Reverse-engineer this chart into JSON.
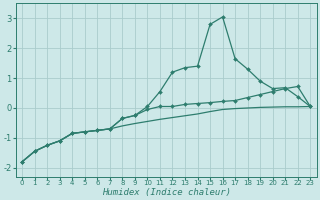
{
  "xlabel": "Humidex (Indice chaleur)",
  "background_color": "#cde8e8",
  "grid_color": "#aacccc",
  "line_color": "#2e7d6e",
  "xlim": [
    -0.5,
    23.5
  ],
  "ylim": [
    -2.3,
    3.5
  ],
  "x": [
    0,
    1,
    2,
    3,
    4,
    5,
    6,
    7,
    8,
    9,
    10,
    11,
    12,
    13,
    14,
    15,
    16,
    17,
    18,
    19,
    20,
    21,
    22,
    23
  ],
  "y_mid": [
    -1.8,
    -1.45,
    -1.25,
    -1.1,
    -0.85,
    -0.8,
    -0.75,
    -0.7,
    -0.35,
    -0.25,
    -0.05,
    0.05,
    0.05,
    0.12,
    0.15,
    0.18,
    0.22,
    0.25,
    0.35,
    0.45,
    0.55,
    0.65,
    0.72,
    0.05
  ],
  "y_top": [
    -1.8,
    -1.45,
    -1.25,
    -1.1,
    -0.85,
    -0.8,
    -0.75,
    -0.7,
    -0.35,
    -0.25,
    0.05,
    0.55,
    1.2,
    1.35,
    1.4,
    2.8,
    3.05,
    1.65,
    1.3,
    0.9,
    0.65,
    0.68,
    0.38,
    0.05
  ],
  "y_bot": [
    -1.8,
    -1.45,
    -1.25,
    -1.1,
    -0.85,
    -0.8,
    -0.75,
    -0.7,
    -0.6,
    -0.52,
    -0.45,
    -0.38,
    -0.32,
    -0.26,
    -0.2,
    -0.12,
    -0.05,
    -0.02,
    0.0,
    0.02,
    0.03,
    0.04,
    0.04,
    0.05
  ],
  "yticks": [
    -2,
    -1,
    0,
    1,
    2,
    3
  ],
  "xticks": [
    0,
    1,
    2,
    3,
    4,
    5,
    6,
    7,
    8,
    9,
    10,
    11,
    12,
    13,
    14,
    15,
    16,
    17,
    18,
    19,
    20,
    21,
    22,
    23
  ]
}
